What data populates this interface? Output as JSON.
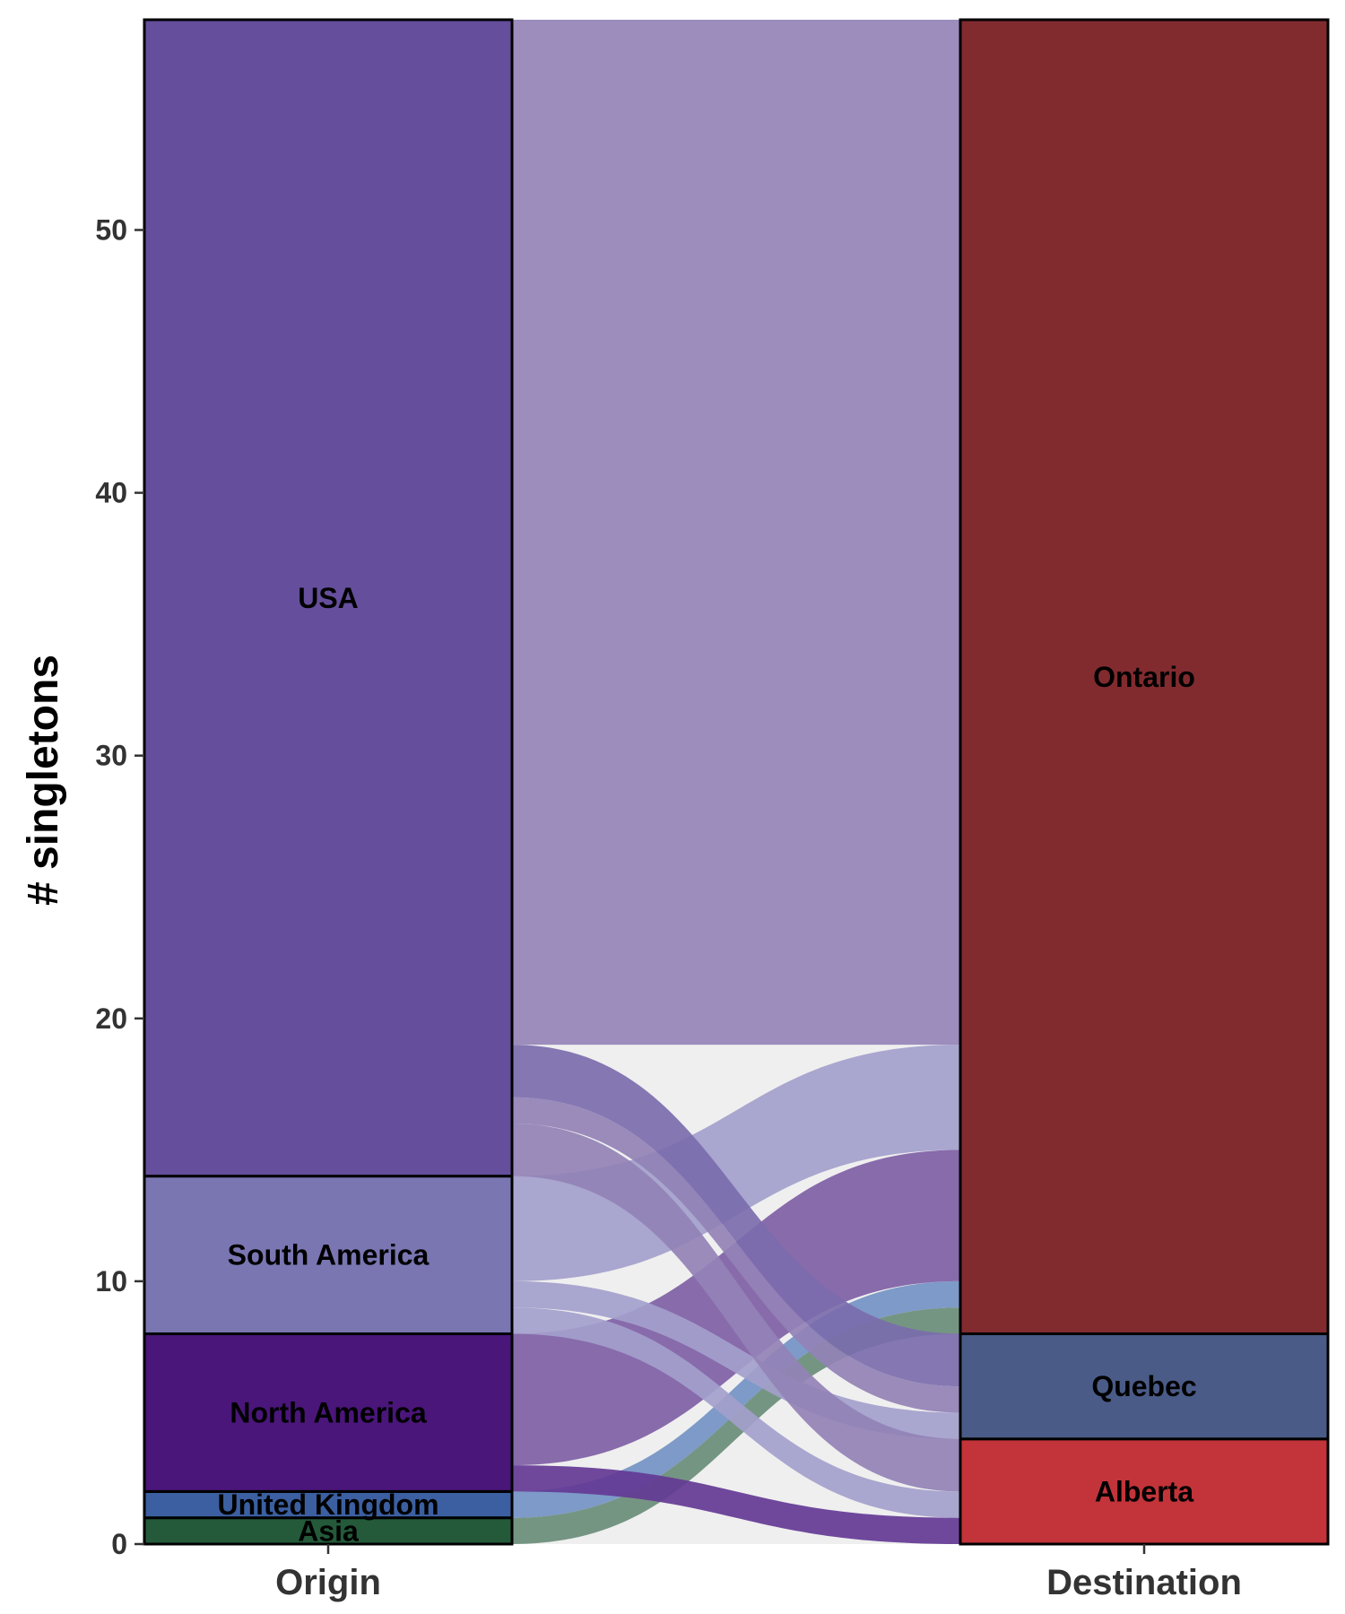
{
  "chart_data": {
    "type": "alluvial",
    "ylabel": "# singletons",
    "ylim": [
      0,
      58
    ],
    "yticks": [
      0,
      10,
      20,
      30,
      40,
      50
    ],
    "axes": [
      "Origin",
      "Destination"
    ],
    "origin_strata": [
      {
        "name": "Asia",
        "value": 1,
        "color": "#245A3A"
      },
      {
        "name": "United Kingdom",
        "value": 1,
        "color": "#3B5FA0"
      },
      {
        "name": "North America",
        "value": 6,
        "color": "#4A167A"
      },
      {
        "name": "South America",
        "value": 6,
        "color": "#7A76B2"
      },
      {
        "name": "USA",
        "value": 44,
        "color": "#654E9B"
      }
    ],
    "destination_strata": [
      {
        "name": "Alberta",
        "value": 4,
        "color": "#C2343A"
      },
      {
        "name": "Quebec",
        "value": 4,
        "color": "#4A5B87"
      },
      {
        "name": "Ontario",
        "value": 50,
        "color": "#812B2F"
      }
    ],
    "flows": [
      {
        "origin": "Asia",
        "destination": "Ontario",
        "value": 1,
        "color": "#6A8D7A"
      },
      {
        "origin": "United Kingdom",
        "destination": "Ontario",
        "value": 1,
        "color": "#7392C4"
      },
      {
        "origin": "North America",
        "destination": "Alberta",
        "value": 1,
        "color": "#643A95"
      },
      {
        "origin": "North America",
        "destination": "Ontario",
        "value": 5,
        "color": "#7F60A5"
      },
      {
        "origin": "South America",
        "destination": "Alberta",
        "value": 1,
        "color": "#A3A0CC"
      },
      {
        "origin": "South America",
        "destination": "Quebec",
        "value": 1,
        "color": "#A3A0CC"
      },
      {
        "origin": "South America",
        "destination": "Ontario",
        "value": 4,
        "color": "#A3A0CC"
      },
      {
        "origin": "USA",
        "destination": "Alberta",
        "value": 2,
        "color": "#9382B6"
      },
      {
        "origin": "USA",
        "destination": "Quebec",
        "value": 1,
        "color": "#9382B6"
      },
      {
        "origin": "USA",
        "destination": "Quebec",
        "value": 2,
        "color": "#7B6DAC"
      },
      {
        "origin": "USA",
        "destination": "Ontario",
        "value": 39,
        "color": "#9584B7"
      }
    ],
    "grid": false,
    "legend": "none"
  }
}
